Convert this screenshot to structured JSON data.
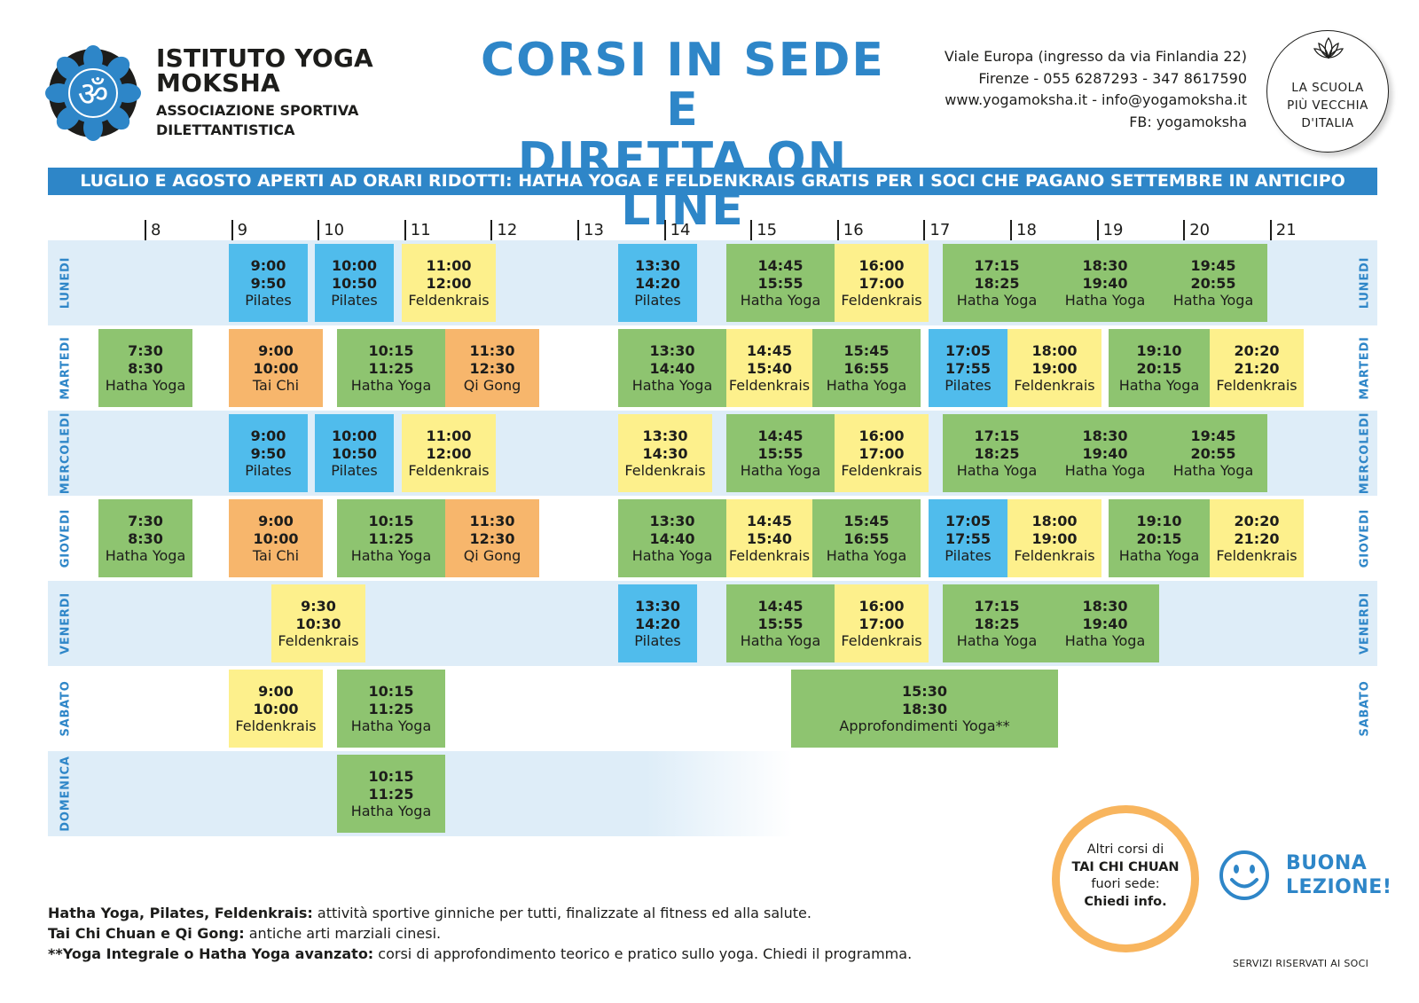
{
  "header": {
    "org_line1": "ISTITUTO YOGA",
    "org_line2": "MOKSHA",
    "org_sub1": "ASSOCIAZIONE SPORTIVA",
    "org_sub2": "DILETTANTISTICA",
    "logo_icon": "om-lotus-icon",
    "title_line1": "CORSI IN SEDE E",
    "title_line2": "DIRETTA ON LINE",
    "contact": [
      "Viale Europa (ingresso da via Finlandia 22)",
      "Firenze - 055 6287293 - 347 8617590",
      "www.yogamoksha.it - info@yogamoksha.it",
      "FB: yogamoksha"
    ],
    "seal_line1": "LA SCUOLA",
    "seal_line2": "PIÙ VECCHIA",
    "seal_line3": "D'ITALIA",
    "seal_icon": "lotus-icon"
  },
  "banner": "LUGLIO E AGOSTO APERTI AD ORARI RIDOTTI: HATHA YOGA E FELDENKRAIS GRATIS PER I SOCI CHE PAGANO SETTEMBRE IN ANTICIPO",
  "hours": [
    "8",
    "9",
    "10",
    "11",
    "12",
    "13",
    "14",
    "15",
    "16",
    "17",
    "18",
    "19",
    "20",
    "21"
  ],
  "days": [
    {
      "name": "LUNEDI",
      "repeat_right": true,
      "bg": "light",
      "classes": [
        {
          "start": "9:00",
          "end": "9:50",
          "name": "Pilates",
          "color": "blue"
        },
        {
          "start": "10:00",
          "end": "10:50",
          "name": "Pilates",
          "color": "blue"
        },
        {
          "start": "11:00",
          "end": "12:00",
          "name": "Feldenkrais",
          "color": "yellow"
        },
        {
          "start": "13:30",
          "end": "14:20",
          "name": "Pilates",
          "color": "blue"
        },
        {
          "start": "14:45",
          "end": "15:55",
          "name": "Hatha Yoga",
          "color": "green"
        },
        {
          "start": "16:00",
          "end": "17:00",
          "name": "Feldenkrais",
          "color": "yellow"
        },
        {
          "start": "17:15",
          "end": "18:25",
          "name": "Hatha Yoga",
          "color": "green"
        },
        {
          "start": "18:30",
          "end": "19:40",
          "name": "Hatha Yoga",
          "color": "green"
        },
        {
          "start": "19:45",
          "end": "20:55",
          "name": "Hatha Yoga",
          "color": "green"
        }
      ]
    },
    {
      "name": "MARTEDI",
      "repeat_right": true,
      "bg": "white",
      "classes": [
        {
          "start": "7:30",
          "end": "8:30",
          "name": "Hatha Yoga",
          "color": "green"
        },
        {
          "start": "9:00",
          "end": "10:00",
          "name": "Tai Chi",
          "color": "orange"
        },
        {
          "start": "10:15",
          "end": "11:25",
          "name": "Hatha Yoga",
          "color": "green"
        },
        {
          "start": "11:30",
          "end": "12:30",
          "name": "Qi Gong",
          "color": "orange"
        },
        {
          "start": "13:30",
          "end": "14:40",
          "name": "Hatha Yoga",
          "color": "green"
        },
        {
          "start": "14:45",
          "end": "15:40",
          "name": "Feldenkrais",
          "color": "yellow"
        },
        {
          "start": "15:45",
          "end": "16:55",
          "name": "Hatha Yoga",
          "color": "green"
        },
        {
          "start": "17:05",
          "end": "17:55",
          "name": "Pilates",
          "color": "blue"
        },
        {
          "start": "18:00",
          "end": "19:00",
          "name": "Feldenkrais",
          "color": "yellow"
        },
        {
          "start": "19:10",
          "end": "20:15",
          "name": "Hatha Yoga",
          "color": "green"
        },
        {
          "start": "20:20",
          "end": "21:20",
          "name": "Feldenkrais",
          "color": "yellow"
        }
      ]
    },
    {
      "name": "MERCOLEDI",
      "repeat_right": true,
      "bg": "light",
      "classes": [
        {
          "start": "9:00",
          "end": "9:50",
          "name": "Pilates",
          "color": "blue"
        },
        {
          "start": "10:00",
          "end": "10:50",
          "name": "Pilates",
          "color": "blue"
        },
        {
          "start": "11:00",
          "end": "12:00",
          "name": "Feldenkrais",
          "color": "yellow"
        },
        {
          "start": "13:30",
          "end": "14:30",
          "name": "Feldenkrais",
          "color": "yellow"
        },
        {
          "start": "14:45",
          "end": "15:55",
          "name": "Hatha Yoga",
          "color": "green"
        },
        {
          "start": "16:00",
          "end": "17:00",
          "name": "Feldenkrais",
          "color": "yellow"
        },
        {
          "start": "17:15",
          "end": "18:25",
          "name": "Hatha Yoga",
          "color": "green"
        },
        {
          "start": "18:30",
          "end": "19:40",
          "name": "Hatha Yoga",
          "color": "green"
        },
        {
          "start": "19:45",
          "end": "20:55",
          "name": "Hatha Yoga",
          "color": "green"
        }
      ]
    },
    {
      "name": "GIOVEDI",
      "repeat_right": true,
      "bg": "white",
      "classes": [
        {
          "start": "7:30",
          "end": "8:30",
          "name": "Hatha Yoga",
          "color": "green"
        },
        {
          "start": "9:00",
          "end": "10:00",
          "name": "Tai Chi",
          "color": "orange"
        },
        {
          "start": "10:15",
          "end": "11:25",
          "name": "Hatha Yoga",
          "color": "green"
        },
        {
          "start": "11:30",
          "end": "12:30",
          "name": "Qi Gong",
          "color": "orange"
        },
        {
          "start": "13:30",
          "end": "14:40",
          "name": "Hatha Yoga",
          "color": "green"
        },
        {
          "start": "14:45",
          "end": "15:40",
          "name": "Feldenkrais",
          "color": "yellow"
        },
        {
          "start": "15:45",
          "end": "16:55",
          "name": "Hatha Yoga",
          "color": "green"
        },
        {
          "start": "17:05",
          "end": "17:55",
          "name": "Pilates",
          "color": "blue"
        },
        {
          "start": "18:00",
          "end": "19:00",
          "name": "Feldenkrais",
          "color": "yellow"
        },
        {
          "start": "19:10",
          "end": "20:15",
          "name": "Hatha Yoga",
          "color": "green"
        },
        {
          "start": "20:20",
          "end": "21:20",
          "name": "Feldenkrais",
          "color": "yellow"
        }
      ]
    },
    {
      "name": "VENERDI",
      "repeat_right": true,
      "bg": "light",
      "classes": [
        {
          "start": "9:30",
          "end": "10:30",
          "name": "Feldenkrais",
          "color": "yellow"
        },
        {
          "start": "13:30",
          "end": "14:20",
          "name": "Pilates",
          "color": "blue"
        },
        {
          "start": "14:45",
          "end": "15:55",
          "name": "Hatha Yoga",
          "color": "green"
        },
        {
          "start": "16:00",
          "end": "17:00",
          "name": "Feldenkrais",
          "color": "yellow"
        },
        {
          "start": "17:15",
          "end": "18:25",
          "name": "Hatha Yoga",
          "color": "green"
        },
        {
          "start": "18:30",
          "end": "19:40",
          "name": "Hatha Yoga",
          "color": "green"
        }
      ]
    },
    {
      "name": "SABATO",
      "repeat_right": true,
      "bg": "white",
      "classes": [
        {
          "start": "9:00",
          "end": "10:00",
          "name": "Feldenkrais",
          "color": "yellow"
        },
        {
          "start": "10:15",
          "end": "11:25",
          "name": "Hatha Yoga",
          "color": "green"
        },
        {
          "start": "15:30",
          "end": "18:30",
          "name": "Approfondimenti Yoga**",
          "color": "green"
        }
      ]
    },
    {
      "name": "DOMENICA",
      "repeat_right": false,
      "bg": "fade",
      "classes": [
        {
          "start": "10:15",
          "end": "11:25",
          "name": "Hatha Yoga",
          "color": "green"
        }
      ]
    }
  ],
  "colors": {
    "blue": "#50bcec",
    "green": "#8ec470",
    "yellow": "#fdf08c",
    "orange": "#f7b66c",
    "accent": "#2e86c8"
  },
  "legend": [
    {
      "bold": "Hatha Yoga, Pilates, Feldenkrais:",
      "text": " attività sportive ginniche per tutti, finalizzate al fitness ed alla salute."
    },
    {
      "bold": "Tai Chi Chuan e Qi Gong:",
      "text": " antiche arti marziali cinesi."
    },
    {
      "bold": "**Yoga Integrale o Hatha Yoga avanzato:",
      "text": " corsi di approfondimento teorico e pratico sullo yoga. Chiedi il programma."
    }
  ],
  "circle": {
    "line1": "Altri corsi di",
    "line2": "TAI CHI CHUAN",
    "line3": "fuori sede:",
    "line4": "Chiedi info."
  },
  "smile_icon": "smiley-icon",
  "buona_line1": "BUONA",
  "buona_line2": "LEZIONE!",
  "reserved": "SERVIZI RISERVATI AI SOCI"
}
